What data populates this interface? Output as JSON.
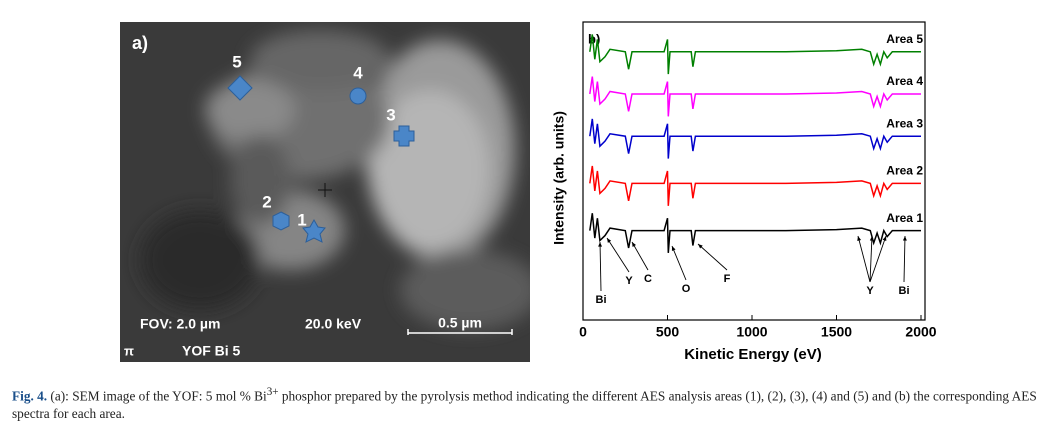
{
  "panel_a": {
    "label": "a)",
    "markers": [
      "5",
      "4",
      "3",
      "2",
      "1"
    ],
    "fov": "FOV: 2.0 µm",
    "voltage": "20.0 keV",
    "scale_bar": "0.5 µm",
    "sample": "YOF Bi 5",
    "icon": "π"
  },
  "chart_data": {
    "type": "line",
    "panel_label": "b)",
    "x_label": "Kinetic Energy (eV)",
    "y_label": "Intensity (arb. units)",
    "x": [
      40,
      55,
      70,
      85,
      100,
      130,
      160,
      250,
      270,
      290,
      480,
      500,
      505,
      515,
      640,
      650,
      665,
      900,
      1200,
      1500,
      1650,
      1700,
      1720,
      1740,
      1760,
      1780,
      1800,
      1830,
      1900,
      2000
    ],
    "series": [
      {
        "name": "Area 1",
        "color": "#000000",
        "values": [
          1.8,
          2.15,
          1.65,
          2.05,
          1.6,
          1.7,
          1.85,
          1.8,
          1.45,
          1.8,
          1.8,
          2.05,
          1.35,
          1.8,
          1.8,
          1.5,
          1.8,
          1.8,
          1.8,
          1.82,
          1.85,
          1.8,
          1.55,
          1.75,
          1.55,
          1.8,
          1.68,
          1.8,
          1.8,
          1.8
        ]
      },
      {
        "name": "Area 2",
        "color": "#ff0000",
        "values": [
          2.75,
          3.1,
          2.6,
          3.0,
          2.55,
          2.65,
          2.8,
          2.75,
          2.4,
          2.75,
          2.75,
          3.0,
          2.3,
          2.75,
          2.75,
          2.45,
          2.75,
          2.75,
          2.75,
          2.77,
          2.8,
          2.75,
          2.5,
          2.7,
          2.5,
          2.75,
          2.63,
          2.75,
          2.75,
          2.75
        ]
      },
      {
        "name": "Area 3",
        "color": "#0000cc",
        "values": [
          3.7,
          4.05,
          3.55,
          3.95,
          3.5,
          3.6,
          3.75,
          3.7,
          3.35,
          3.7,
          3.7,
          3.95,
          3.25,
          3.7,
          3.7,
          3.4,
          3.7,
          3.7,
          3.7,
          3.72,
          3.75,
          3.7,
          3.45,
          3.65,
          3.45,
          3.7,
          3.58,
          3.7,
          3.7,
          3.7
        ]
      },
      {
        "name": "Area 4",
        "color": "#ff00ff",
        "values": [
          4.55,
          4.9,
          4.4,
          4.8,
          4.35,
          4.45,
          4.6,
          4.55,
          4.2,
          4.55,
          4.55,
          4.8,
          4.1,
          4.55,
          4.55,
          4.25,
          4.55,
          4.55,
          4.55,
          4.57,
          4.6,
          4.55,
          4.3,
          4.5,
          4.3,
          4.55,
          4.43,
          4.55,
          4.55,
          4.55
        ]
      },
      {
        "name": "Area 5",
        "color": "#008000",
        "values": [
          5.4,
          5.75,
          5.25,
          5.65,
          5.2,
          5.3,
          5.45,
          5.4,
          5.05,
          5.4,
          5.4,
          5.65,
          4.95,
          5.4,
          5.4,
          5.1,
          5.4,
          5.4,
          5.4,
          5.42,
          5.45,
          5.4,
          5.15,
          5.35,
          5.15,
          5.4,
          5.28,
          5.4,
          5.4,
          5.4
        ]
      }
    ],
    "xlim": [
      0,
      2000
    ],
    "xticks": [
      0,
      500,
      1000,
      1500,
      2000
    ],
    "ylim": [
      0,
      6
    ],
    "annotations": [
      "Bi",
      "Y",
      "C",
      "O",
      "F",
      "Y",
      "Bi"
    ]
  },
  "caption": {
    "label": "Fig. 4.",
    "text_before": "(a): SEM image of the YOF: 5 mol % Bi",
    "superscript": "3+",
    "text_after": " phosphor prepared by the pyrolysis method indicating the different AES analysis areas (1), (2), (3), (4) and (5) and (b) the corresponding AES spectra for each area."
  }
}
